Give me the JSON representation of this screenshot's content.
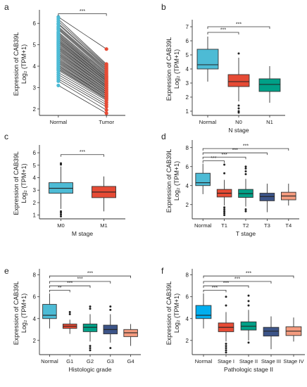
{
  "colors": {
    "normal_cyan": "#4dbbd5",
    "tumor_red": "#e64b35",
    "green": "#00a087",
    "navy": "#3c5488",
    "salmon": "#f39b7f",
    "pair_line": "#000000"
  },
  "chart_data": [
    {
      "id": "a",
      "panel_label": "a",
      "type": "scatter",
      "subtype": "paired-dot",
      "categories": [
        "Normal",
        "Tumor"
      ],
      "point_colors": [
        "#4dbbd5",
        "#e64b35"
      ],
      "ylabel_line1": "Expression of CAB39L",
      "ylabel_line2": "Log₂ (TPM+1)",
      "xlabel": "",
      "ylim": [
        1.7,
        6.5
      ],
      "yticks": [
        2,
        3,
        4,
        5,
        6
      ],
      "normal_values": [
        6.3,
        6.2,
        6.1,
        6.0,
        5.95,
        5.85,
        5.8,
        5.75,
        5.7,
        5.6,
        5.55,
        5.5,
        5.45,
        5.4,
        5.35,
        5.3,
        5.25,
        5.2,
        5.15,
        5.1,
        5.05,
        5.0,
        4.95,
        4.9,
        4.85,
        4.8,
        4.75,
        4.7,
        4.65,
        4.6,
        4.55,
        4.5,
        4.45,
        4.4,
        4.35,
        4.3,
        4.25,
        4.2,
        4.15,
        4.1,
        4.05,
        4.0,
        3.95,
        3.9,
        3.85,
        3.8,
        3.7,
        3.6,
        3.5,
        3.4,
        3.3,
        3.1
      ],
      "tumor_values": [
        4.8,
        4.1,
        4.05,
        4.0,
        3.95,
        3.9,
        3.85,
        3.8,
        3.75,
        3.7,
        3.65,
        3.6,
        3.55,
        3.5,
        3.5,
        3.45,
        3.4,
        3.4,
        3.35,
        3.3,
        3.3,
        3.25,
        3.2,
        3.2,
        3.15,
        3.1,
        3.1,
        3.05,
        3.0,
        3.0,
        2.95,
        2.9,
        2.9,
        2.85,
        2.8,
        2.8,
        2.75,
        2.7,
        2.7,
        2.65,
        2.6,
        2.6,
        2.55,
        2.5,
        2.5,
        2.45,
        2.4,
        2.3,
        2.2,
        2.1,
        1.95,
        1.8
      ],
      "significance": [
        {
          "from": 0,
          "to": 1,
          "label": "***",
          "y": 6.45
        }
      ]
    },
    {
      "id": "b",
      "panel_label": "b",
      "type": "box",
      "categories": [
        "Normal",
        "N0",
        "N1"
      ],
      "box_colors": [
        "#4dbbd5",
        "#e64b35",
        "#00a087"
      ],
      "boxes": [
        {
          "min": 3.1,
          "q1": 4.0,
          "median": 4.3,
          "q3": 5.4,
          "max": 6.3,
          "outliers": []
        },
        {
          "min": 1.7,
          "q1": 2.75,
          "median": 3.1,
          "q3": 3.6,
          "max": 4.8,
          "outliers": [
            1.2,
            1.0,
            0.9,
            1.4,
            5.1
          ]
        },
        {
          "min": 1.6,
          "q1": 2.4,
          "median": 2.9,
          "q3": 3.3,
          "max": 4.2,
          "outliers": []
        }
      ],
      "ylabel_line1": "Expression of CAB39L",
      "ylabel_line2": "Log₂ (TPM+1)",
      "xlabel": "N stage",
      "ylim": [
        0.7,
        7.3
      ],
      "yticks": [
        1,
        2,
        3,
        4,
        5,
        6,
        7
      ],
      "significance": [
        {
          "from": 0,
          "to": 1,
          "label": "***",
          "y": 6.6
        },
        {
          "from": 0,
          "to": 2,
          "label": "***",
          "y": 7.0
        }
      ]
    },
    {
      "id": "c",
      "panel_label": "c",
      "type": "box",
      "categories": [
        "M0",
        "M1"
      ],
      "box_colors": [
        "#4dbbd5",
        "#e64b35"
      ],
      "boxes": [
        {
          "min": 1.5,
          "q1": 2.75,
          "median": 3.15,
          "q3": 3.6,
          "max": 4.9,
          "outliers": [
            1.3,
            1.2,
            1.05,
            0.9,
            5.05,
            5.15
          ]
        },
        {
          "min": 1.3,
          "q1": 2.4,
          "median": 2.85,
          "q3": 3.3,
          "max": 4.1,
          "outliers": []
        }
      ],
      "ylabel_line1": "Expression of CAB39L",
      "ylabel_line2": "Log₂ (TPM+1)",
      "xlabel": "M stage",
      "ylim": [
        0.7,
        6.4
      ],
      "yticks": [
        1,
        2,
        3,
        4,
        5,
        6
      ],
      "significance": [
        {
          "from": 0,
          "to": 1,
          "label": "***",
          "y": 5.85
        }
      ]
    },
    {
      "id": "d",
      "panel_label": "d",
      "type": "box",
      "categories": [
        "Normal",
        "T1",
        "T2",
        "T3",
        "T4"
      ],
      "box_colors": [
        "#4dbbd5",
        "#e64b35",
        "#00a087",
        "#3c5488",
        "#f39b7f"
      ],
      "boxes": [
        {
          "min": 3.1,
          "q1": 4.0,
          "median": 4.3,
          "q3": 5.3,
          "max": 6.3,
          "outliers": []
        },
        {
          "min": 1.9,
          "q1": 2.8,
          "median": 3.2,
          "q3": 3.6,
          "max": 4.6,
          "outliers": [
            1.5,
            1.3,
            1.1,
            0.9,
            1.7,
            6.2,
            5.3
          ]
        },
        {
          "min": 1.8,
          "q1": 2.75,
          "median": 3.15,
          "q3": 3.6,
          "max": 4.7,
          "outliers": [
            1.5,
            1.3,
            5.2,
            5.5,
            5.8,
            6.0
          ]
        },
        {
          "min": 1.2,
          "q1": 2.4,
          "median": 2.85,
          "q3": 3.2,
          "max": 4.2,
          "outliers": []
        },
        {
          "min": 1.9,
          "q1": 2.5,
          "median": 2.9,
          "q3": 3.3,
          "max": 4.2,
          "outliers": []
        }
      ],
      "ylabel_line1": "Expression of CAB39L",
      "ylabel_line2": "Log₂ (TPM+1)",
      "xlabel": "T stage",
      "ylim": [
        0.5,
        8.5
      ],
      "yticks": [
        2,
        4,
        6,
        8
      ],
      "significance": [
        {
          "from": 0,
          "to": 1,
          "label": "***",
          "y": 6.6
        },
        {
          "from": 0,
          "to": 2,
          "label": "***",
          "y": 7.0
        },
        {
          "from": 0,
          "to": 3,
          "label": "***",
          "y": 7.45
        },
        {
          "from": 0,
          "to": 4,
          "label": "***",
          "y": 7.9
        }
      ]
    },
    {
      "id": "e",
      "panel_label": "e",
      "type": "box",
      "categories": [
        "Normal",
        "G1",
        "G2",
        "G3",
        "G4"
      ],
      "box_colors": [
        "#4dbbd5",
        "#e64b35",
        "#00a087",
        "#3c5488",
        "#f39b7f"
      ],
      "boxes": [
        {
          "min": 3.1,
          "q1": 4.0,
          "median": 4.3,
          "q3": 5.3,
          "max": 6.3,
          "outliers": []
        },
        {
          "min": 2.6,
          "q1": 3.1,
          "median": 3.3,
          "q3": 3.5,
          "max": 3.9,
          "outliers": [
            4.4,
            4.6
          ]
        },
        {
          "min": 1.9,
          "q1": 2.8,
          "median": 3.2,
          "q3": 3.5,
          "max": 4.4,
          "outliers": [
            1.5,
            1.3,
            1.1,
            4.9,
            5.1
          ]
        },
        {
          "min": 1.8,
          "q1": 2.6,
          "median": 3.0,
          "q3": 3.4,
          "max": 4.4,
          "outliers": [
            1.3,
            4.8,
            5.1
          ]
        },
        {
          "min": 1.5,
          "q1": 2.35,
          "median": 2.7,
          "q3": 3.0,
          "max": 3.5,
          "outliers": []
        }
      ],
      "ylabel_line1": "Expression of CAB39L",
      "ylabel_line2": "Log₂ (TPM+1)",
      "xlabel": "Histologic grade",
      "ylim": [
        0.7,
        8.3
      ],
      "yticks": [
        2,
        4,
        6,
        8
      ],
      "significance": [
        {
          "from": 0,
          "to": 1,
          "label": "**",
          "y": 6.6
        },
        {
          "from": 0,
          "to": 2,
          "label": "***",
          "y": 7.0
        },
        {
          "from": 0,
          "to": 3,
          "label": "***",
          "y": 7.4
        },
        {
          "from": 0,
          "to": 4,
          "label": "***",
          "y": 7.9
        }
      ]
    },
    {
      "id": "f",
      "panel_label": "f",
      "type": "box",
      "categories": [
        "Normal",
        "Stage I",
        "Stage II",
        "Stage III",
        "Stage IV"
      ],
      "box_colors": [
        "#00aeef",
        "#e64b35",
        "#00a087",
        "#3c5488",
        "#f39b7f"
      ],
      "boxes": [
        {
          "min": 3.1,
          "q1": 4.0,
          "median": 4.3,
          "q3": 5.2,
          "max": 6.3,
          "outliers": []
        },
        {
          "min": 1.9,
          "q1": 2.8,
          "median": 3.2,
          "q3": 3.6,
          "max": 4.6,
          "outliers": [
            1.7,
            1.5,
            1.3,
            1.1,
            0.9,
            5.2,
            6.0
          ]
        },
        {
          "min": 2.0,
          "q1": 2.95,
          "median": 3.3,
          "q3": 3.7,
          "max": 4.8,
          "outliers": [
            1.8,
            5.2,
            5.6,
            6.1
          ]
        },
        {
          "min": 1.2,
          "q1": 2.4,
          "median": 2.85,
          "q3": 3.2,
          "max": 4.2,
          "outliers": []
        },
        {
          "min": 1.9,
          "q1": 2.45,
          "median": 2.85,
          "q3": 3.25,
          "max": 4.1,
          "outliers": []
        }
      ],
      "ylabel_line1": "Expression of CAB39L",
      "ylabel_line2": "Log₂ (TPM+1)",
      "xlabel": "Pathologic stage II",
      "ylim": [
        0.7,
        8.3
      ],
      "yticks": [
        2,
        4,
        6,
        8
      ],
      "significance": [
        {
          "from": 0,
          "to": 1,
          "label": "***",
          "y": 6.6
        },
        {
          "from": 0,
          "to": 2,
          "label": "***",
          "y": 7.0
        },
        {
          "from": 0,
          "to": 3,
          "label": "***",
          "y": 7.4
        },
        {
          "from": 0,
          "to": 4,
          "label": "***",
          "y": 7.9
        }
      ]
    }
  ]
}
